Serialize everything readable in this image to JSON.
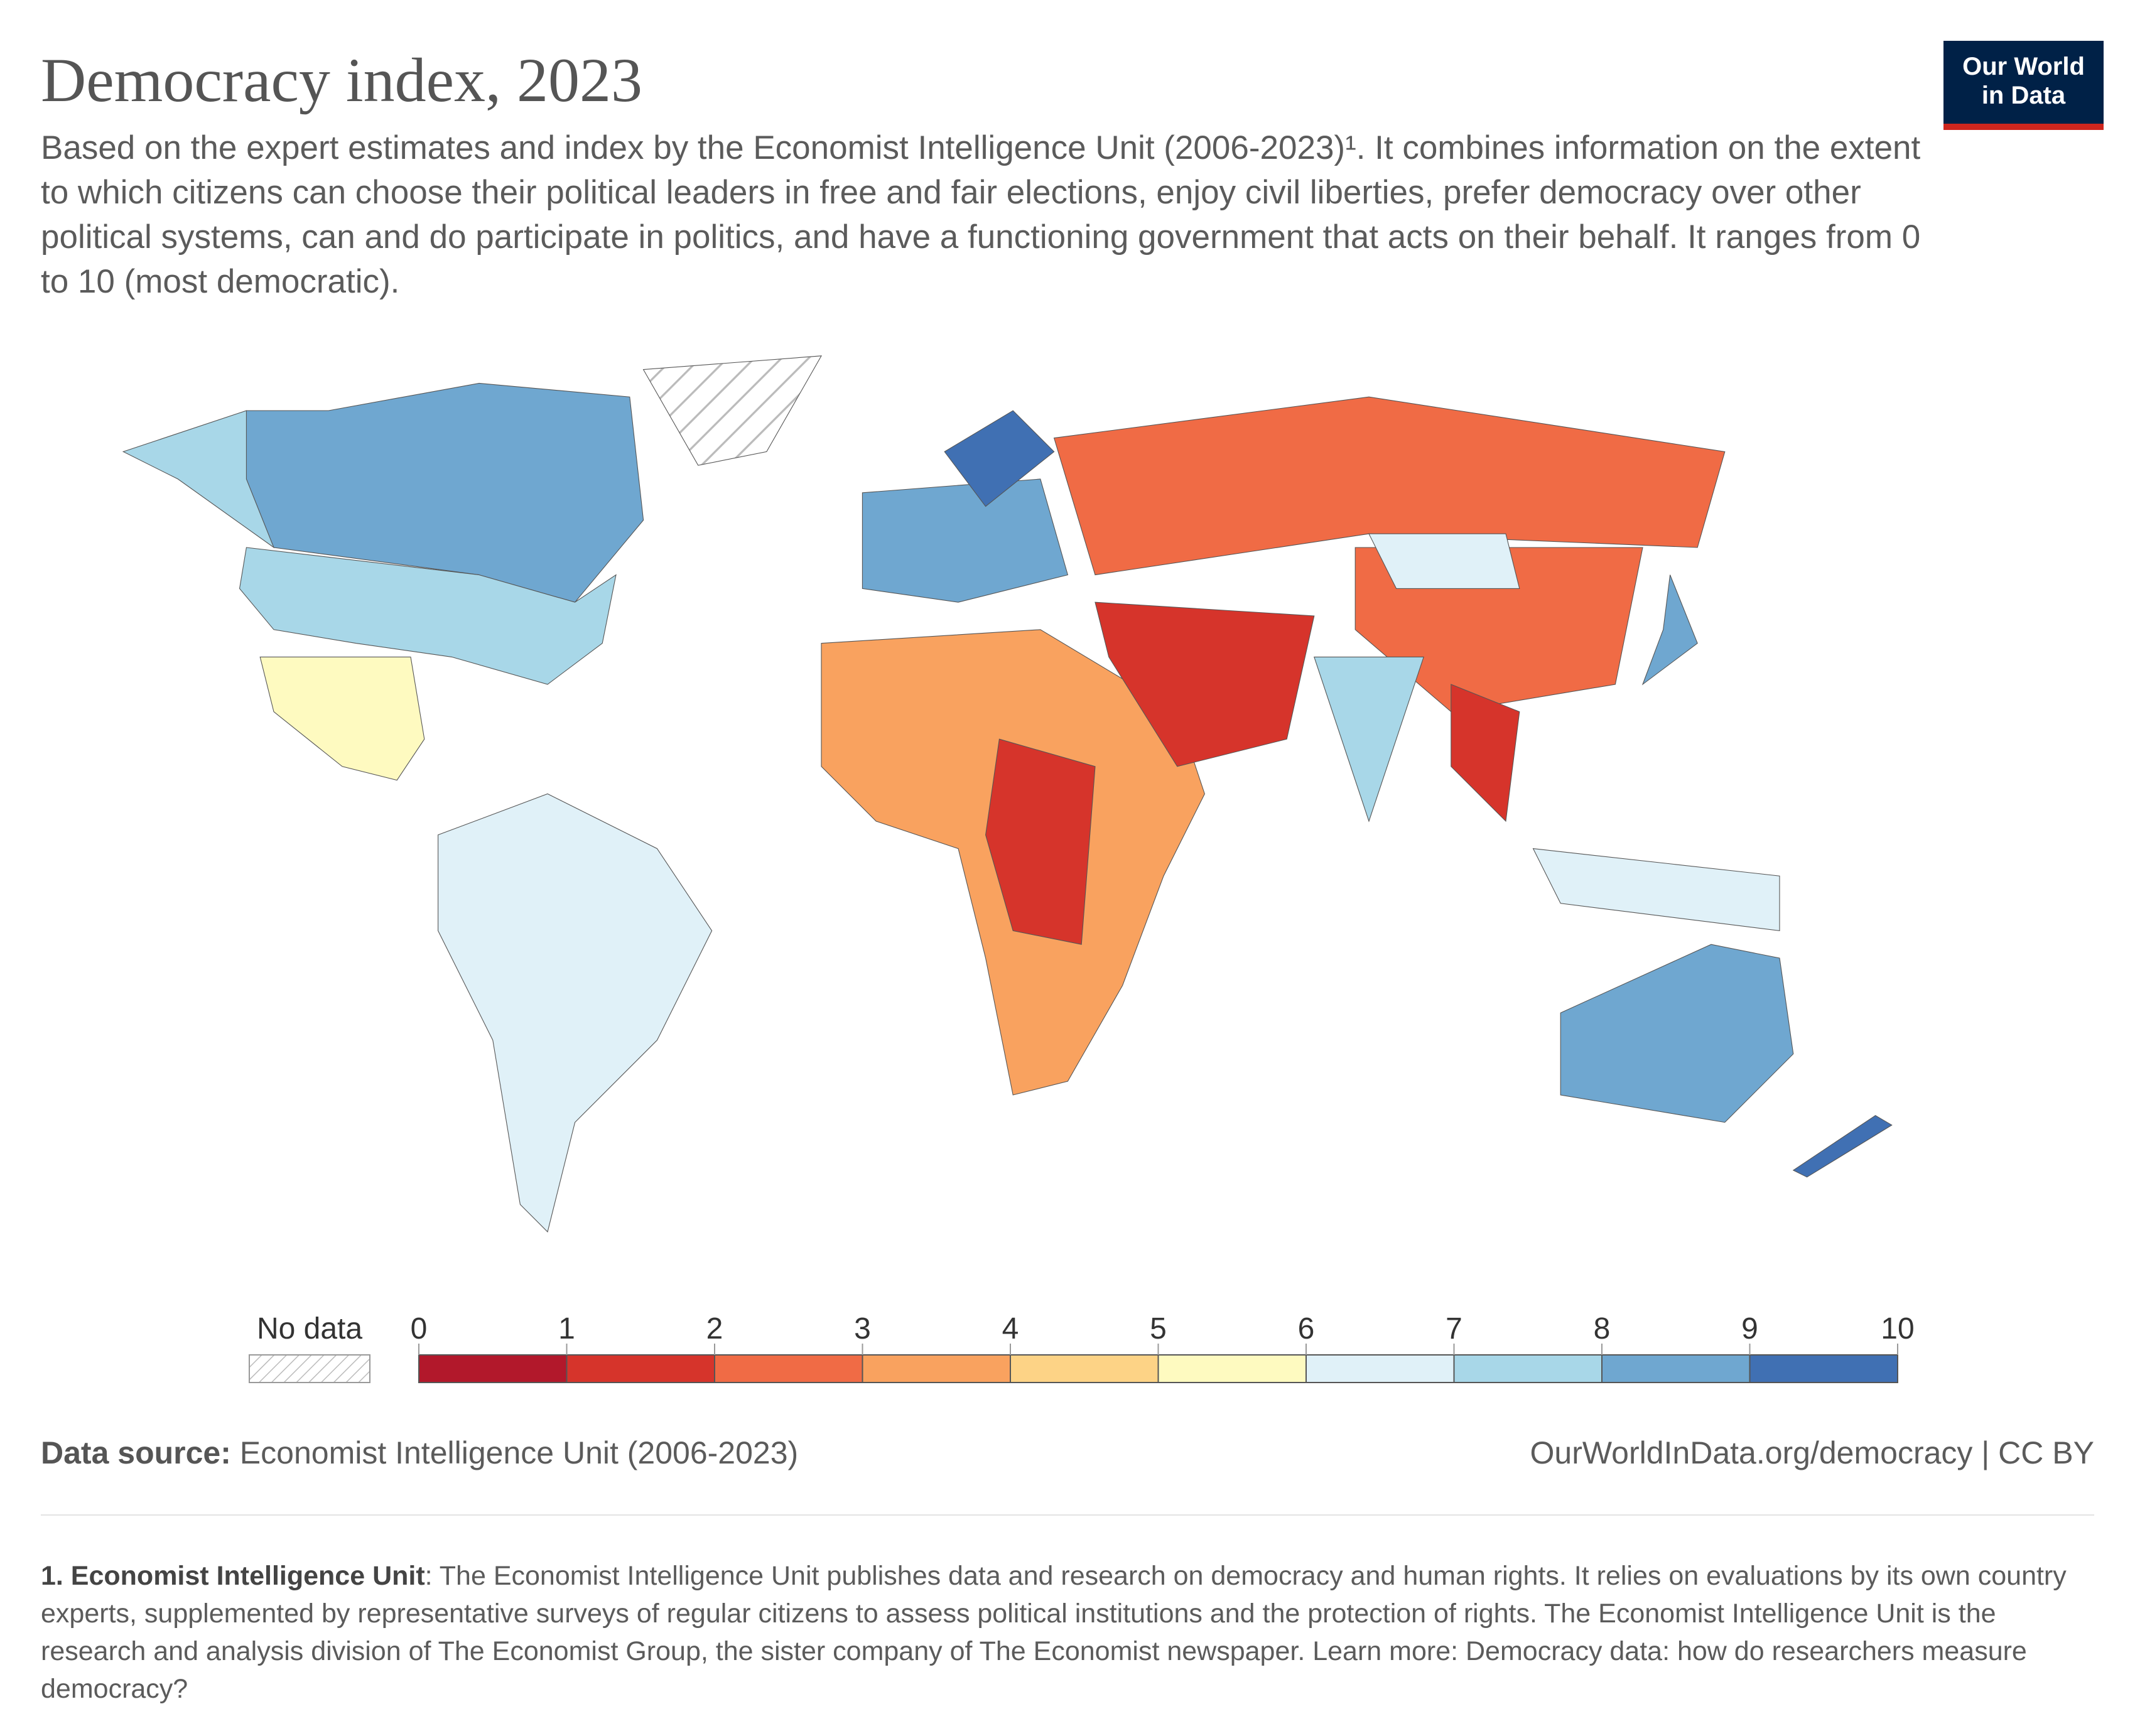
{
  "chart_data": {
    "type": "map",
    "title": "Democracy index, 2023",
    "subtitle": "Based on the expert estimates and index by the Economist Intelligence Unit (2006-2023)¹. It combines information on the extent to which citizens can choose their political leaders in free and fair elections, enjoy civil liberties, prefer democracy over other political systems, can and do participate in politics, and have a functioning government that acts on their behalf. It ranges from 0 to 10 (most democratic).",
    "logo": [
      "Our World",
      "in Data"
    ],
    "legend": {
      "no_data": "No data",
      "lim": [
        0,
        10
      ],
      "bins": [
        0,
        1,
        2,
        3,
        4,
        5,
        6,
        7,
        8,
        9,
        10
      ],
      "colors": [
        "#b2182b",
        "#d6342b",
        "#f06b45",
        "#f9a25f",
        "#fdd386",
        "#fefac0",
        "#e0f1f8",
        "#a8d7e8",
        "#6fa7d0",
        "#4070b3"
      ]
    },
    "source_label": "Data source:",
    "source": "Economist Intelligence Unit (2006-2023)",
    "url": "OurWorldInData.org/democracy | CC BY",
    "footnote_title": "1. Economist Intelligence Unit",
    "footnote": ": The Economist Intelligence Unit publishes data and research on democracy and human rights. It relies on evaluations by its own country experts, supplemented by representative surveys of regular citizens to assess political institutions and the protection of rights. The Economist Intelligence Unit is the research and analysis division of The Economist Group, the sister company of The Economist newspaper. Learn more: Democracy data: how do researchers measure democracy?"
  }
}
